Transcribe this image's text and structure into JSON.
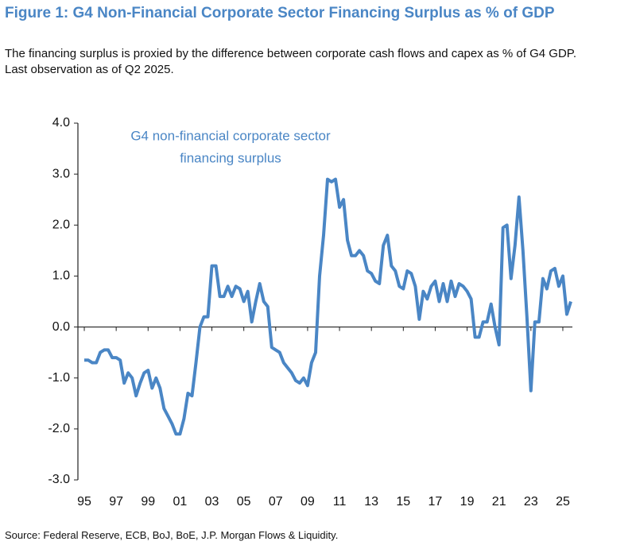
{
  "chart_data": {
    "type": "line",
    "title": "Figure 1: G4 Non-Financial Corporate Sector Financing Surplus as % of GDP",
    "subtitle": "The financing surplus is proxied by the difference between corporate cash flows and capex as % of G4 GDP. Last observation as of Q2 2025.",
    "annotation": [
      "G4 non-financial corporate sector",
      "financing surplus"
    ],
    "source": "Source: Federal Reserve, ECB, BoJ, BoE, J.P. Morgan Flows & Liquidity.",
    "x": [
      1995,
      1995.25,
      1995.5,
      1995.75,
      1996,
      1996.25,
      1996.5,
      1996.75,
      1997,
      1997.25,
      1997.5,
      1997.75,
      1998,
      1998.25,
      1998.5,
      1998.75,
      1999,
      1999.25,
      1999.5,
      1999.75,
      2000,
      2000.25,
      2000.5,
      2000.75,
      2001,
      2001.25,
      2001.5,
      2001.75,
      2002,
      2002.25,
      2002.5,
      2002.75,
      2003,
      2003.25,
      2003.5,
      2003.75,
      2004,
      2004.25,
      2004.5,
      2004.75,
      2005,
      2005.25,
      2005.5,
      2005.75,
      2006,
      2006.25,
      2006.5,
      2006.75,
      2007,
      2007.25,
      2007.5,
      2007.75,
      2008,
      2008.25,
      2008.5,
      2008.75,
      2009,
      2009.25,
      2009.5,
      2009.75,
      2010,
      2010.25,
      2010.5,
      2010.75,
      2011,
      2011.25,
      2011.5,
      2011.75,
      2012,
      2012.25,
      2012.5,
      2012.75,
      2013,
      2013.25,
      2013.5,
      2013.75,
      2014,
      2014.25,
      2014.5,
      2014.75,
      2015,
      2015.25,
      2015.5,
      2015.75,
      2016,
      2016.25,
      2016.5,
      2016.75,
      2017,
      2017.25,
      2017.5,
      2017.75,
      2018,
      2018.25,
      2018.5,
      2018.75,
      2019,
      2019.25,
      2019.5,
      2019.75,
      2020,
      2020.25,
      2020.5,
      2020.75,
      2021,
      2021.25,
      2021.5,
      2021.75,
      2022,
      2022.25,
      2022.5,
      2022.75,
      2023,
      2023.25,
      2023.5,
      2023.75,
      2024,
      2024.25,
      2024.5,
      2024.75,
      2025,
      2025.25,
      2025.5
    ],
    "series": [
      {
        "color": "#4a86c5",
        "values": [
          -0.65,
          -0.65,
          -0.7,
          -0.7,
          -0.5,
          -0.45,
          -0.45,
          -0.6,
          -0.6,
          -0.65,
          -1.1,
          -0.9,
          -1.0,
          -1.35,
          -1.1,
          -0.9,
          -0.85,
          -1.2,
          -1.0,
          -1.2,
          -1.6,
          -1.75,
          -1.9,
          -2.1,
          -2.1,
          -1.8,
          -1.3,
          -1.35,
          -0.7,
          0.0,
          0.2,
          0.2,
          1.2,
          1.2,
          0.6,
          0.6,
          0.8,
          0.6,
          0.8,
          0.75,
          0.5,
          0.7,
          0.1,
          0.5,
          0.85,
          0.5,
          0.4,
          -0.4,
          -0.45,
          -0.5,
          -0.7,
          -0.8,
          -0.9,
          -1.05,
          -1.1,
          -1.0,
          -1.15,
          -0.7,
          -0.5,
          1.0,
          1.8,
          2.9,
          2.85,
          2.9,
          2.35,
          2.5,
          1.7,
          1.4,
          1.4,
          1.5,
          1.4,
          1.1,
          1.05,
          0.9,
          0.85,
          1.6,
          1.8,
          1.2,
          1.1,
          0.8,
          0.75,
          1.1,
          1.05,
          0.8,
          0.15,
          0.7,
          0.55,
          0.8,
          0.9,
          0.5,
          0.85,
          0.5,
          0.9,
          0.6,
          0.85,
          0.8,
          0.7,
          0.55,
          -0.2,
          -0.2,
          0.1,
          0.1,
          0.45,
          0.0,
          -0.35,
          1.95,
          2.0,
          0.95,
          1.6,
          2.55,
          1.5,
          0.2,
          -1.25,
          0.1,
          0.1,
          0.95,
          0.75,
          1.1,
          1.15,
          0.8,
          1.0,
          0.25,
          0.5
        ]
      }
    ],
    "xlim": [
      1994.6,
      2025.6
    ],
    "xticks": [
      {
        "value": 1995,
        "label": "95"
      },
      {
        "value": 1997,
        "label": "97"
      },
      {
        "value": 1999,
        "label": "99"
      },
      {
        "value": 2001,
        "label": "01"
      },
      {
        "value": 2003,
        "label": "03"
      },
      {
        "value": 2005,
        "label": "05"
      },
      {
        "value": 2007,
        "label": "07"
      },
      {
        "value": 2009,
        "label": "09"
      },
      {
        "value": 2011,
        "label": "11"
      },
      {
        "value": 2013,
        "label": "13"
      },
      {
        "value": 2015,
        "label": "15"
      },
      {
        "value": 2017,
        "label": "17"
      },
      {
        "value": 2019,
        "label": "19"
      },
      {
        "value": 2021,
        "label": "21"
      },
      {
        "value": 2023,
        "label": "23"
      },
      {
        "value": 2025,
        "label": "25"
      }
    ],
    "ylim": [
      -3,
      4
    ],
    "yticks": [
      {
        "value": -3,
        "label": "-3.0"
      },
      {
        "value": -2,
        "label": "-2.0"
      },
      {
        "value": -1,
        "label": "-1.0"
      },
      {
        "value": 0,
        "label": "0.0"
      },
      {
        "value": 1,
        "label": "1.0"
      },
      {
        "value": 2,
        "label": "2.0"
      },
      {
        "value": 3,
        "label": "3.0"
      },
      {
        "value": 4,
        "label": "4.0"
      }
    ],
    "grid": false
  }
}
